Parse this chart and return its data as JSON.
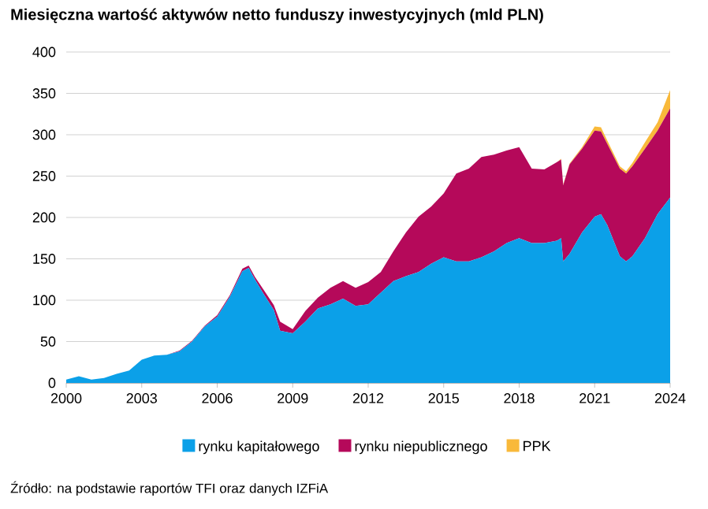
{
  "chart_data": {
    "type": "area",
    "stacked": true,
    "title": "Miesięczna wartość aktywów netto funduszy inwestycyjnych (mld PLN)",
    "annotations": [
      "Źródło: na podstawie raportów TFI oraz danych IZFiA"
    ],
    "x": [
      "2000-01",
      "2000-07",
      "2001-01",
      "2001-07",
      "2002-01",
      "2002-07",
      "2003-01",
      "2003-07",
      "2004-01",
      "2004-07",
      "2005-01",
      "2005-07",
      "2006-01",
      "2006-07",
      "2007-01",
      "2007-04",
      "2007-07",
      "2007-11",
      "2008-04",
      "2008-07",
      "2009-01",
      "2009-07",
      "2010-01",
      "2010-07",
      "2011-01",
      "2011-07",
      "2012-01",
      "2012-07",
      "2013-01",
      "2013-07",
      "2014-01",
      "2014-07",
      "2015-01",
      "2015-07",
      "2016-01",
      "2016-07",
      "2017-01",
      "2017-07",
      "2018-01",
      "2018-07",
      "2019-01",
      "2019-07",
      "2019-09",
      "2019-10",
      "2020-01",
      "2020-07",
      "2021-01",
      "2021-04",
      "2021-07",
      "2022-01",
      "2022-04",
      "2022-07",
      "2023-01",
      "2023-07",
      "2024-01"
    ],
    "series": [
      {
        "name": "rynku kapitałowego",
        "color": "#0ba0e8",
        "values": [
          4,
          8,
          4,
          6,
          11,
          15,
          28,
          33,
          34,
          38,
          50,
          68,
          80,
          104,
          135,
          139,
          125,
          108,
          88,
          63,
          60,
          74,
          90,
          95,
          102,
          93,
          95,
          109,
          123,
          129,
          134,
          144,
          152,
          147,
          147,
          152,
          159,
          169,
          175,
          169,
          169,
          172,
          175,
          147,
          156,
          182,
          201,
          204,
          191,
          153,
          147,
          153,
          175,
          204,
          224
        ]
      },
      {
        "name": "rynku niepublicznego",
        "color": "#b5095a",
        "values": [
          0,
          0,
          0,
          0,
          0,
          0,
          0,
          0,
          0,
          1,
          1,
          1,
          2,
          2,
          3,
          3,
          3,
          5,
          6,
          11,
          5,
          13,
          13,
          20,
          21,
          22,
          27,
          25,
          36,
          53,
          67,
          69,
          77,
          106,
          112,
          121,
          117,
          112,
          110,
          90,
          89,
          95,
          95,
          92,
          108,
          101,
          104,
          100,
          98,
          106,
          106,
          109,
          108,
          101,
          108
        ]
      },
      {
        "name": "PPK",
        "color": "#f9b93a",
        "values": [
          0,
          0,
          0,
          0,
          0,
          0,
          0,
          0,
          0,
          0,
          0,
          0,
          0,
          0,
          0,
          0,
          0,
          0,
          0,
          0,
          0,
          0,
          0,
          0,
          0,
          0,
          0,
          0,
          0,
          0,
          0,
          0,
          0,
          0,
          0,
          0,
          0,
          0,
          0,
          0,
          0,
          0,
          1,
          1,
          1,
          2,
          5,
          5,
          4,
          3,
          3,
          4,
          8,
          10,
          22
        ]
      }
    ],
    "xlim": [
      "2000",
      "2024"
    ],
    "xticks": [
      "2000",
      "2003",
      "2006",
      "2009",
      "2012",
      "2015",
      "2018",
      "2021",
      "2024"
    ],
    "ylim": [
      0,
      400
    ],
    "yticks": [
      0,
      50,
      100,
      150,
      200,
      250,
      300,
      350,
      400
    ],
    "grid": "y",
    "legend": "bottom"
  }
}
